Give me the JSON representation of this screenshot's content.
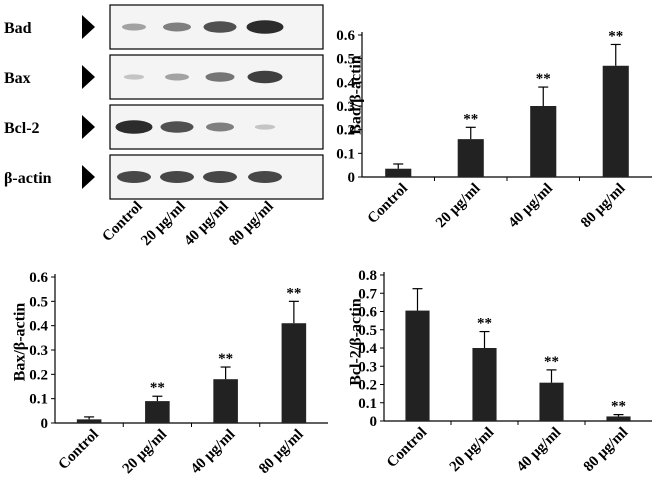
{
  "colors": {
    "bar": "#222222",
    "axis": "#000000",
    "background": "#ffffff",
    "blot_band": "#1c1c1c"
  },
  "blot": {
    "rows": [
      {
        "label": "Bad",
        "intensities": [
          0.3,
          0.5,
          0.75,
          0.95
        ]
      },
      {
        "label": "Bax",
        "intensities": [
          0.12,
          0.3,
          0.55,
          0.85
        ]
      },
      {
        "label": "Bcl-2",
        "intensities": [
          0.95,
          0.75,
          0.5,
          0.12
        ]
      },
      {
        "label": "β-actin",
        "intensities": [
          0.8,
          0.8,
          0.8,
          0.8
        ]
      }
    ],
    "lanes": [
      "Control",
      "20 μg/ml",
      "40 μg/ml",
      "80 μg/ml"
    ],
    "marker": "right-pointing triangle"
  },
  "chart_data": [
    {
      "type": "bar",
      "categories": [
        "Control",
        "20 μg/ml",
        "40 μg/ml",
        "80 μg/ml"
      ],
      "values": [
        0.035,
        0.16,
        0.3,
        0.47
      ],
      "errors": [
        0.02,
        0.05,
        0.08,
        0.09
      ],
      "annotations": [
        "",
        "**",
        "**",
        "**"
      ],
      "ylabel": "Bad/β-actin",
      "ylim": [
        0,
        0.6
      ],
      "yticks": [
        "0",
        "0.1",
        "0.2",
        "0.3",
        "0.4",
        "0.5",
        "0.6"
      ],
      "grid": false
    },
    {
      "type": "bar",
      "categories": [
        "Control",
        "20 μg/ml",
        "40 μg/ml",
        "80 μg/ml"
      ],
      "values": [
        0.015,
        0.09,
        0.18,
        0.41
      ],
      "errors": [
        0.01,
        0.02,
        0.05,
        0.09
      ],
      "annotations": [
        "",
        "**",
        "**",
        "**"
      ],
      "ylabel": "Bax/β-actin",
      "ylim": [
        0,
        0.6
      ],
      "yticks": [
        "0",
        "0.1",
        "0.2",
        "0.3",
        "0.4",
        "0.5",
        "0.6"
      ],
      "grid": false
    },
    {
      "type": "bar",
      "categories": [
        "Control",
        "20 μg/ml",
        "40 μg/ml",
        "80 μg/ml"
      ],
      "values": [
        0.605,
        0.4,
        0.21,
        0.025
      ],
      "errors": [
        0.12,
        0.09,
        0.07,
        0.01
      ],
      "annotations": [
        "",
        "**",
        "**",
        "**"
      ],
      "ylabel": "Bcl-2/β-actin",
      "ylim": [
        0,
        0.8
      ],
      "yticks": [
        "0",
        "0.1",
        "0.2",
        "0.3",
        "0.4",
        "0.5",
        "0.6",
        "0.7",
        "0.8"
      ],
      "grid": false
    }
  ]
}
